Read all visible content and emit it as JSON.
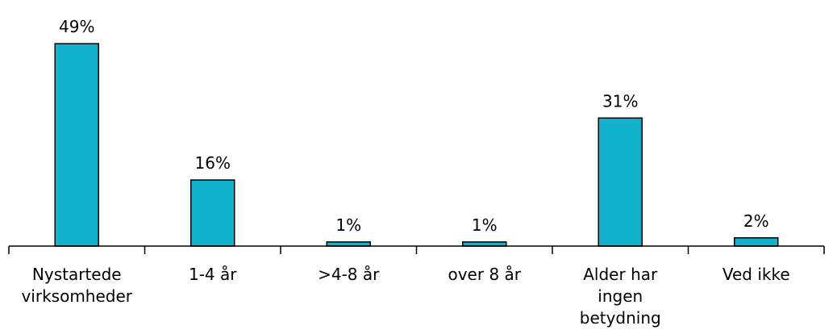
{
  "chart_data": {
    "type": "bar",
    "categories": [
      [
        "Nystartede",
        "virksomheder"
      ],
      [
        "1-4 år"
      ],
      [
        ">4-8 år"
      ],
      [
        "over 8 år"
      ],
      [
        "Alder har",
        "ingen",
        "betydning"
      ],
      [
        "Ved ikke"
      ]
    ],
    "values": [
      49,
      16,
      1,
      1,
      31,
      2
    ],
    "value_labels": [
      "49%",
      "16%",
      "1%",
      "1%",
      "31%",
      "2%"
    ],
    "ylim": [
      0,
      50
    ],
    "bar_color": "#12B2CC",
    "grid": false,
    "legend": "none"
  }
}
